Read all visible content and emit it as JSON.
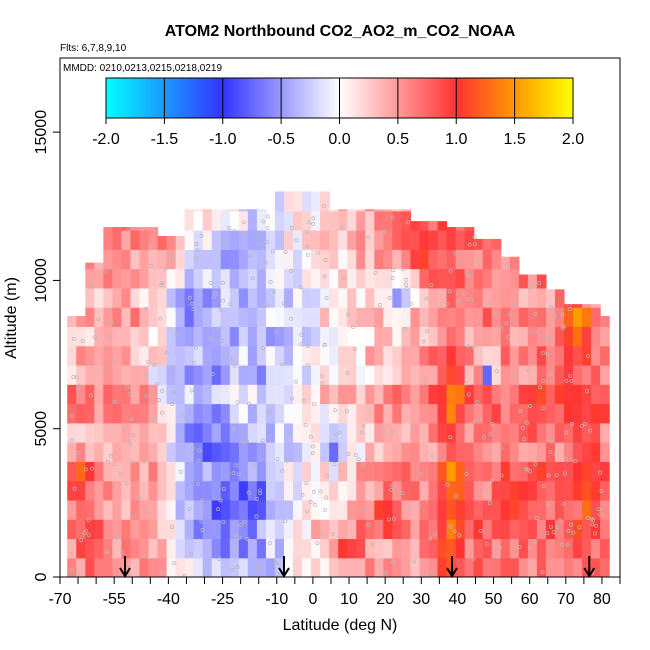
{
  "chart_data": {
    "type": "heatmap",
    "title": "ATOM2 Northbound CO2_AO2_m_CO2_NOAA",
    "flights_label": "Flts: 6,7,8,9,10",
    "dates_label": "MMDD: 0210,0213,0215,0218,0219",
    "xlabel": "Latitude (deg N)",
    "ylabel": "Altitude (m)",
    "xlim": [
      -70,
      85
    ],
    "ylim": [
      0,
      17500
    ],
    "x_ticks": [
      -70,
      -55,
      -40,
      -25,
      -10,
      0,
      10,
      20,
      30,
      40,
      50,
      60,
      70,
      80
    ],
    "x_tick_labels": [
      "-70",
      "-55",
      "-40",
      "-25",
      "-10",
      "0",
      "10",
      "20",
      "30",
      "40",
      "50",
      "60",
      "70",
      "80"
    ],
    "y_ticks": [
      0,
      5000,
      10000,
      15000
    ],
    "y_tick_labels": [
      "0",
      "5000",
      "10000",
      "15000"
    ],
    "colorbar": {
      "ticks": [
        -2.0,
        -1.5,
        -1.0,
        -0.5,
        0.0,
        0.5,
        1.0,
        1.5,
        2.0
      ],
      "tick_labels": [
        "-2.0",
        "-1.5",
        "-1.0",
        "-0.5",
        "0.0",
        "0.5",
        "1.0",
        "1.5",
        "2.0"
      ],
      "colors": [
        "#00ffff",
        "#3333ff",
        "#ffffff",
        "#ff3333",
        "#ffff00"
      ]
    },
    "arrow_latitudes": [
      -52,
      -8,
      38.5,
      76.5
    ],
    "altitude_top_profile": [
      {
        "lat": -68,
        "alt": 8800
      },
      {
        "lat": -63,
        "alt": 10600
      },
      {
        "lat": -57,
        "alt": 11800
      },
      {
        "lat": -50,
        "alt": 11800
      },
      {
        "lat": -42,
        "alt": 11500
      },
      {
        "lat": -35,
        "alt": 12400
      },
      {
        "lat": -15,
        "alt": 12400
      },
      {
        "lat": -12,
        "alt": 12200
      },
      {
        "lat": -10,
        "alt": 13000
      },
      {
        "lat": 5,
        "alt": 12400
      },
      {
        "lat": 27,
        "alt": 12000
      },
      {
        "lat": 38,
        "alt": 11800
      },
      {
        "lat": 45,
        "alt": 11400
      },
      {
        "lat": 52,
        "alt": 10800
      },
      {
        "lat": 58,
        "alt": 10200
      },
      {
        "lat": 64,
        "alt": 9700
      },
      {
        "lat": 70,
        "alt": 9200
      },
      {
        "lat": 80,
        "alt": 8800
      }
    ],
    "features": [
      {
        "lat": -20,
        "alt": 2500,
        "dlat": 8,
        "dalt": 1400,
        "value": -1.1
      },
      {
        "lat": -28,
        "alt": 2000,
        "dlat": 10,
        "dalt": 1800,
        "value": -0.8
      },
      {
        "lat": -30,
        "alt": 5000,
        "dlat": 9,
        "dalt": 2500,
        "value": -0.7
      },
      {
        "lat": -33,
        "alt": 9000,
        "dlat": 8,
        "dalt": 1500,
        "value": -0.6
      },
      {
        "lat": -25,
        "alt": 11000,
        "dlat": 6,
        "dalt": 800,
        "value": -0.6
      },
      {
        "lat": -35,
        "alt": 6500,
        "dlat": 8,
        "dalt": 1200,
        "value": -0.4
      },
      {
        "lat": 5,
        "alt": 4500,
        "dlat": 3,
        "dalt": 800,
        "value": -0.6
      },
      {
        "lat": 49,
        "alt": 7000,
        "dlat": 2,
        "dalt": 400,
        "value": -0.8
      },
      {
        "lat": 24,
        "alt": 9500,
        "dlat": 4,
        "dalt": 800,
        "value": -0.3
      },
      {
        "lat": 38.5,
        "alt": 4500,
        "dlat": 3.5,
        "dalt": 3800,
        "value": 1.2
      },
      {
        "lat": 38.5,
        "alt": 1500,
        "dlat": 3,
        "dalt": 1200,
        "value": 1.1
      },
      {
        "lat": 76,
        "alt": 4000,
        "dlat": 3.5,
        "dalt": 3000,
        "value": 1.15
      },
      {
        "lat": 73,
        "alt": 8400,
        "dlat": 4,
        "dalt": 800,
        "value": 1.5
      },
      {
        "lat": 72,
        "alt": 6500,
        "dlat": 4,
        "dalt": 2000,
        "value": 1.0
      },
      {
        "lat": -65,
        "alt": 3400,
        "dlat": 5,
        "dalt": 600,
        "value": 1.0
      },
      {
        "lat": -66,
        "alt": 10300,
        "dlat": 3,
        "dalt": 600,
        "value": 1.0
      },
      {
        "lat": 20,
        "alt": 2200,
        "dlat": 5,
        "dalt": 700,
        "value": 0.9
      },
      {
        "lat": 30,
        "alt": 11300,
        "dlat": 6,
        "dalt": 900,
        "value": 0.9
      },
      {
        "lat": 62,
        "alt": 5000,
        "dlat": 6,
        "dalt": 3000,
        "value": 0.8
      },
      {
        "lat": 55,
        "alt": 2500,
        "dlat": 6,
        "dalt": 1500,
        "value": 0.8
      },
      {
        "lat": -62,
        "alt": 1000,
        "dlat": 5,
        "dalt": 800,
        "value": 0.7
      },
      {
        "lat": 10,
        "alt": 900,
        "dlat": 6,
        "dalt": 700,
        "value": 0.8
      }
    ]
  }
}
